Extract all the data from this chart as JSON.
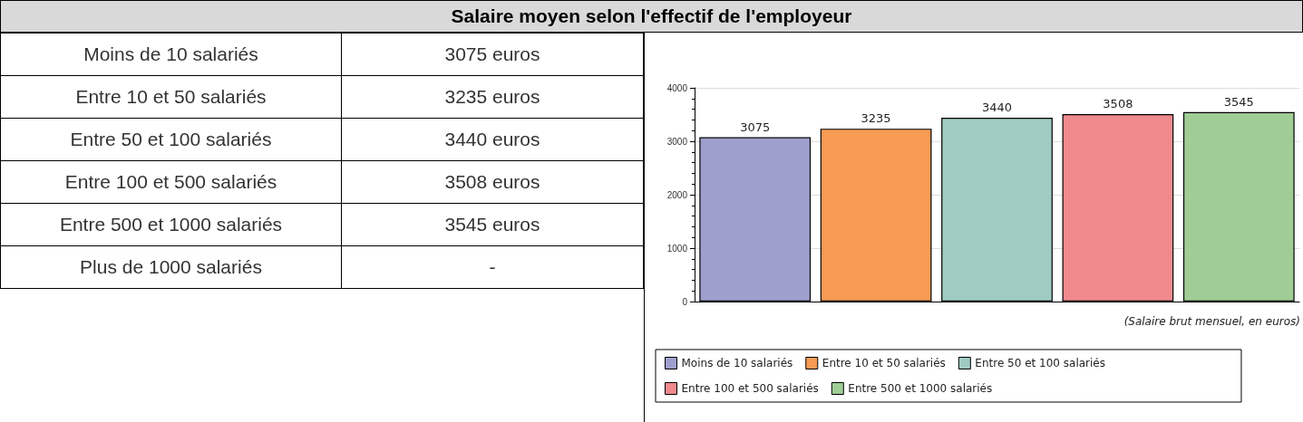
{
  "chart_data": [
    {
      "type": "other",
      "title": "Salaire moyen selon l'effectif de l'employeur",
      "annotations": [
        "Moins de 10 salariés",
        "3075 euros",
        "Entre 10 et 50 salariés",
        "3235 euros",
        "Entre 50 et 100 salariés",
        "3440 euros",
        "Entre 100 et 500 salariés",
        "3508 euros",
        "Entre 500 et 1000 salariés",
        "3545 euros",
        "Plus de 1000 salariés",
        "-"
      ]
    },
    {
      "type": "bar",
      "categories": [
        null,
        null,
        null,
        null,
        null
      ],
      "series": [
        {
          "name": "Moins de 10 salariés",
          "color": "#9e9fcd",
          "values": [
            3075,
            null,
            null,
            null,
            null
          ]
        },
        {
          "name": "Entre 10 et 50 salariés",
          "color": "#f79b55",
          "values": [
            null,
            3235,
            null,
            null,
            null
          ]
        },
        {
          "name": "Entre 50 et 100 salariés",
          "color": "#a0cbc3",
          "values": [
            null,
            null,
            3440,
            null,
            null
          ]
        },
        {
          "name": "Entre 100 et 500 salariés",
          "color": "#f08a8d",
          "values": [
            null,
            null,
            null,
            3508,
            null
          ]
        },
        {
          "name": "Entre 500 et 1000 salariés",
          "color": "#a0cc96",
          "values": [
            null,
            null,
            null,
            null,
            3545
          ]
        }
      ],
      "data_labels": true,
      "ylim": [
        0,
        4000
      ],
      "yticks": [
        0,
        1000,
        2000,
        3000,
        4000
      ],
      "grid": "y",
      "legend": "bottom",
      "tick_labels": "y",
      "annotations": [
        "(Salaire brut mensuel, en euros)"
      ]
    }
  ]
}
